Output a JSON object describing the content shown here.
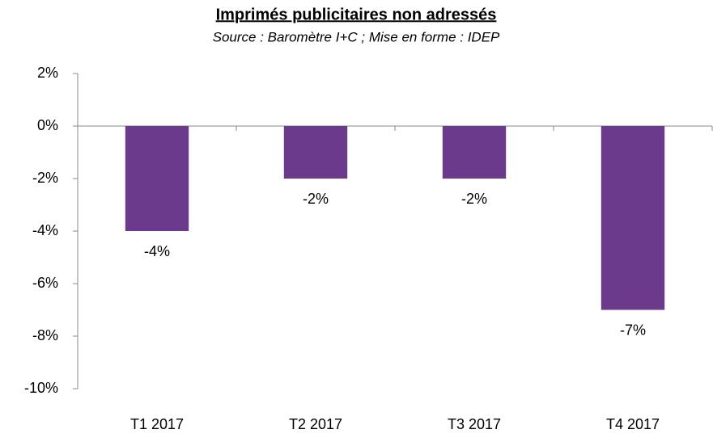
{
  "chart_data": {
    "type": "bar",
    "title": "Imprimés publicitaires non adressés",
    "subtitle": "Source : Baromètre I+C ; Mise en forme : IDEP",
    "categories": [
      "T1 2017",
      "T2 2017",
      "T3 2017",
      "T4 2017"
    ],
    "values": [
      -4,
      -2,
      -2,
      -7
    ],
    "value_labels": [
      "-4%",
      "-2%",
      "-2%",
      "-7%"
    ],
    "color": "#6b3a8c",
    "ylim": [
      -10,
      2
    ],
    "yticks": [
      {
        "value": 2,
        "label": "2%"
      },
      {
        "value": 0,
        "label": "0%"
      },
      {
        "value": -2,
        "label": "-2%"
      },
      {
        "value": -4,
        "label": "-4%"
      },
      {
        "value": -6,
        "label": "-6%"
      },
      {
        "value": -8,
        "label": "-8%"
      },
      {
        "value": -10,
        "label": "-10%"
      }
    ],
    "grid": false
  }
}
